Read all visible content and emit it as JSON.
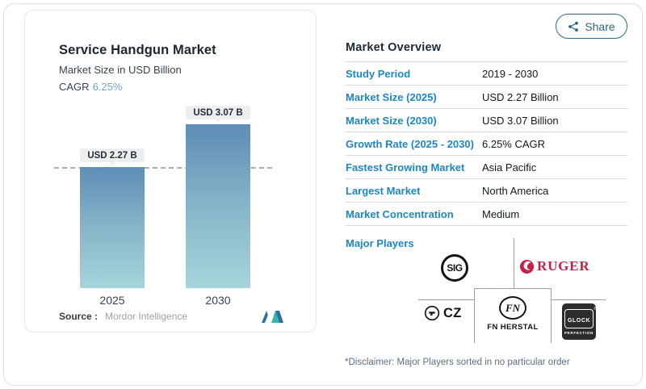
{
  "share": {
    "label": "Share"
  },
  "chart": {
    "title": "Service Handgun Market",
    "subtitle": "Market Size in USD Billion",
    "cagr_label": "CAGR",
    "cagr_value": "6.25%",
    "source_label": "Source :",
    "source_value": "Mordor Intelligence"
  },
  "chart_data": {
    "type": "bar",
    "title": "Service Handgun Market",
    "subtitle": "Market Size in USD Billion",
    "categories": [
      "2025",
      "2030"
    ],
    "values": [
      2.27,
      3.07
    ],
    "data_labels": [
      "USD 2.27 B",
      "USD 3.07 B"
    ],
    "unit": "USD Billion",
    "cagr": "6.25%",
    "ylim": [
      0,
      3.07
    ],
    "grid": false,
    "annotations": [
      "dashed horizontal reference line at 2025 bar top (2.27)"
    ],
    "source": "Mordor Intelligence"
  },
  "overview": {
    "title": "Market Overview",
    "rows": [
      {
        "label": "Study Period",
        "value": "2019 - 2030"
      },
      {
        "label": "Market Size (2025)",
        "value": "USD 2.27 Billion"
      },
      {
        "label": "Market Size (2030)",
        "value": "USD 3.07 Billion"
      },
      {
        "label": "Growth Rate (2025 - 2030)",
        "value": "6.25% CAGR"
      },
      {
        "label": "Fastest Growing Market",
        "value": "Asia Pacific"
      },
      {
        "label": "Largest Market",
        "value": "North America"
      },
      {
        "label": "Market Concentration",
        "value": "Medium"
      }
    ],
    "major_players_label": "Major Players",
    "disclaimer": "*Disclaimer: Major Players sorted in no particular order"
  },
  "players": {
    "sig": "SIG",
    "ruger": "RUGER",
    "cz": "CZ",
    "fn_monogram": "FN",
    "fn_name": "FN HERSTAL",
    "glock": "GLOCK",
    "glock_reg": "®",
    "glock_tagline": "PERFECTION"
  },
  "colors": {
    "accent_blue": "#1d87c3",
    "cagr_blue": "#6ea5cd",
    "bar_top": "#5e8db7",
    "bar_bottom": "#a6d5db",
    "ruger_red": "#c72045",
    "share_teal": "#2e6681",
    "glock_dark": "#2c2c2e"
  }
}
